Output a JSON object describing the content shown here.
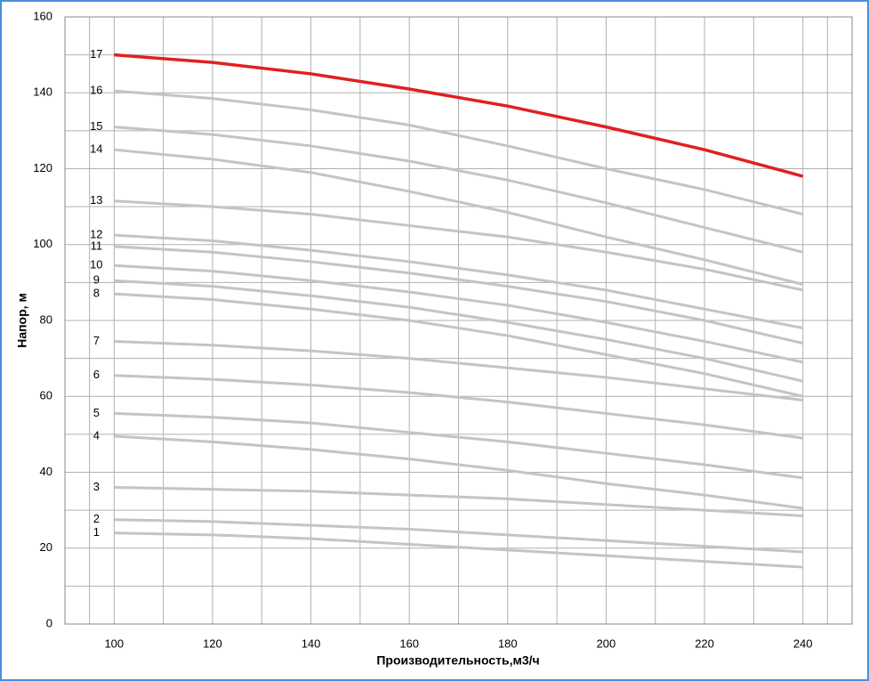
{
  "chart_data": {
    "type": "line",
    "x_label": "Производительность,м3/ч",
    "y_label": "Напор, м",
    "x": [
      100,
      120,
      140,
      160,
      180,
      200,
      220,
      240
    ],
    "series": [
      {
        "name": "1",
        "color": "#c4c4c4",
        "values": [
          24,
          23.5,
          22.5,
          21,
          19.5,
          18,
          16.5,
          15
        ]
      },
      {
        "name": "2",
        "color": "#c4c4c4",
        "values": [
          27.5,
          27,
          26,
          25,
          23.5,
          22,
          20.5,
          19
        ]
      },
      {
        "name": "3",
        "color": "#c4c4c4",
        "values": [
          36,
          35.5,
          35,
          34,
          33,
          31.5,
          30,
          28.5
        ]
      },
      {
        "name": "4",
        "color": "#c4c4c4",
        "values": [
          49.5,
          48,
          46,
          43.5,
          40.5,
          37,
          34,
          30.5
        ]
      },
      {
        "name": "5",
        "color": "#c4c4c4",
        "values": [
          55.5,
          54.5,
          53,
          50.5,
          48,
          45,
          42,
          38.5
        ]
      },
      {
        "name": "6",
        "color": "#c4c4c4",
        "values": [
          65.5,
          64.5,
          63,
          61,
          58.5,
          55.5,
          52.5,
          49
        ]
      },
      {
        "name": "7",
        "color": "#c4c4c4",
        "values": [
          74.5,
          73.5,
          72,
          70,
          67.5,
          65,
          62,
          59
        ]
      },
      {
        "name": "8",
        "color": "#c4c4c4",
        "values": [
          87,
          85.5,
          83,
          80,
          76,
          71,
          66,
          60
        ]
      },
      {
        "name": "9",
        "color": "#c4c4c4",
        "values": [
          90.5,
          89,
          86.5,
          83.5,
          79.5,
          75,
          70,
          64
        ]
      },
      {
        "name": "10",
        "color": "#c4c4c4",
        "values": [
          94.5,
          93,
          90.5,
          87.5,
          84,
          79.5,
          74.5,
          69
        ]
      },
      {
        "name": "11",
        "color": "#c4c4c4",
        "values": [
          99.5,
          98,
          95.5,
          92.5,
          89,
          85,
          80,
          74
        ]
      },
      {
        "name": "12",
        "color": "#c4c4c4",
        "values": [
          102.5,
          101,
          98.5,
          95.5,
          92,
          88,
          83,
          78
        ]
      },
      {
        "name": "13",
        "color": "#c4c4c4",
        "values": [
          111.5,
          110,
          108,
          105,
          102,
          98,
          93.5,
          88
        ]
      },
      {
        "name": "14",
        "color": "#c4c4c4",
        "values": [
          125,
          122.5,
          119,
          114,
          108.5,
          102,
          96,
          89.5
        ]
      },
      {
        "name": "15",
        "color": "#c4c4c4",
        "values": [
          131,
          129,
          126,
          122,
          117,
          111,
          104.5,
          98
        ]
      },
      {
        "name": "16",
        "color": "#c4c4c4",
        "values": [
          140.5,
          138.5,
          135.5,
          131.5,
          126,
          120,
          114.5,
          108
        ]
      },
      {
        "name": "17",
        "color": "#e02020",
        "values": [
          150,
          148,
          145,
          141,
          136.5,
          131,
          125,
          118
        ]
      }
    ],
    "xlim": [
      90,
      250
    ],
    "xticks": [
      100,
      120,
      140,
      160,
      180,
      200,
      220,
      240
    ],
    "ylim": [
      0,
      160
    ],
    "yticks": [
      0,
      20,
      40,
      60,
      80,
      100,
      120,
      140,
      160
    ],
    "grid": true,
    "minor_grid": true
  }
}
